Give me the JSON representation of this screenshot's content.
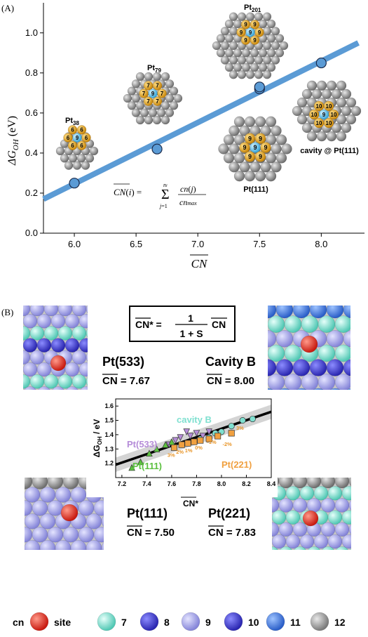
{
  "panel_a": {
    "panel_label": "(A)",
    "cluster_labels": {
      "pt38": "Pt",
      "pt38_sub": "38",
      "pt79": "Pt",
      "pt79_sub": "79",
      "pt201": "Pt",
      "pt201_sub": "201",
      "pt111": "Pt(111)",
      "cavity": "cavity @ Pt(111)"
    },
    "site_numbers": {
      "pt38": "9",
      "pt38_nb": "6",
      "pt79": "9",
      "pt79_nb": "7",
      "pt79_nb2": "6",
      "pt201": "9",
      "pt111": "9",
      "cavity": "9",
      "cavity_nb": "10"
    },
    "formula": "CN(i) = Σ cn(j) / cn_max",
    "colors": {
      "fit_line": "#5b9bd5",
      "point_fill": "#5b9bd5",
      "gold": "#e6a817",
      "site": "#5ab4e0",
      "gray_atom": "#8c8c8c"
    }
  },
  "chart_data": [
    {
      "type": "scatter",
      "xlabel": "CN",
      "ylabel": "ΔG_OH (eV)",
      "xlim": [
        5.75,
        8.35
      ],
      "ylim": [
        0.0,
        1.15
      ],
      "xticks": [
        "6.0",
        "6.5",
        "7.0",
        "7.5",
        "8.0"
      ],
      "yticks": [
        "0.0",
        "0.2",
        "0.4",
        "0.6",
        "0.8",
        "1.0"
      ],
      "fit_line": {
        "x": [
          5.75,
          8.3
        ],
        "y": [
          0.17,
          0.95
        ]
      },
      "series": [
        {
          "x": [
            6.0,
            6.67,
            7.5,
            7.5,
            8.0
          ],
          "y": [
            0.25,
            0.42,
            0.72,
            0.73,
            0.85
          ]
        }
      ]
    },
    {
      "type": "scatter",
      "xlabel": "CN*",
      "ylabel": "ΔG_OH / eV",
      "xlim": [
        7.15,
        8.4
      ],
      "ylim": [
        1.1,
        1.65
      ],
      "xticks": [
        "7.2",
        "7.4",
        "7.6",
        "7.8",
        "8.0",
        "8.2",
        "8.4"
      ],
      "yticks": [
        "1.2",
        "1.3",
        "1.4",
        "1.5",
        "1.6"
      ],
      "fit_line": {
        "x": [
          7.15,
          8.4
        ],
        "y": [
          1.19,
          1.56
        ]
      },
      "band_halfwidth": 0.05,
      "series": [
        {
          "name": "cavity B",
          "color": "#7fe0d0",
          "marker": "circle",
          "x": [
            7.83,
            7.9,
            7.95,
            8.0,
            8.08,
            8.17,
            8.25
          ],
          "y": [
            1.37,
            1.38,
            1.41,
            1.42,
            1.46,
            1.5,
            1.51
          ]
        },
        {
          "name": "Pt(533)",
          "color": "#b58cd8",
          "marker": "triangle-down",
          "x": [
            7.58,
            7.63,
            7.67,
            7.72,
            7.75,
            7.8,
            7.85,
            7.9
          ],
          "y": [
            1.33,
            1.36,
            1.38,
            1.42,
            1.39,
            1.41,
            1.39,
            1.42
          ]
        },
        {
          "name": "Pt(221)",
          "color": "#f0a040",
          "marker": "square",
          "x": [
            7.62,
            7.68,
            7.73,
            7.78,
            7.83,
            7.9,
            7.97,
            8.08
          ],
          "y": [
            1.31,
            1.33,
            1.34,
            1.35,
            1.36,
            1.37,
            1.39,
            1.41
          ]
        },
        {
          "name": "Pt(111)",
          "color": "#5cc040",
          "marker": "triangle-up",
          "x": [
            7.28,
            7.35,
            7.42,
            7.48,
            7.55,
            7.6
          ],
          "y": [
            1.17,
            1.21,
            1.27,
            1.3,
            1.33,
            1.35
          ]
        }
      ],
      "annotations": [
        "3%",
        "2%",
        "1%",
        "0%",
        "-1%",
        "-2%",
        "3%"
      ]
    }
  ],
  "panel_b": {
    "panel_label": "(B)",
    "formula": {
      "lhs": "CN* =",
      "num": "1",
      "den": "1 + S",
      "rhs": "CN"
    },
    "facets": {
      "pt533": {
        "name": "Pt(533)",
        "cn": "CN = 7.67"
      },
      "cavityb": {
        "name": "Cavity B",
        "cn": "CN = 8.00"
      },
      "pt111": {
        "name": "Pt(111)",
        "cn": "CN = 7.50"
      },
      "pt221": {
        "name": "Pt(221)",
        "cn": "CN = 7.83"
      }
    },
    "legend": {
      "title": "cn",
      "items": [
        {
          "label": "site",
          "color": "#e8251b"
        },
        {
          "label": "7",
          "color": "#7fe6d4"
        },
        {
          "label": "8",
          "color": "#4f45cf"
        },
        {
          "label": "9",
          "color": "#a9a9ee"
        },
        {
          "label": "10",
          "color": "#3540df"
        },
        {
          "label": "11",
          "color": "#3a78e0"
        },
        {
          "label": "12",
          "color": "#9a9a9a"
        }
      ]
    }
  }
}
